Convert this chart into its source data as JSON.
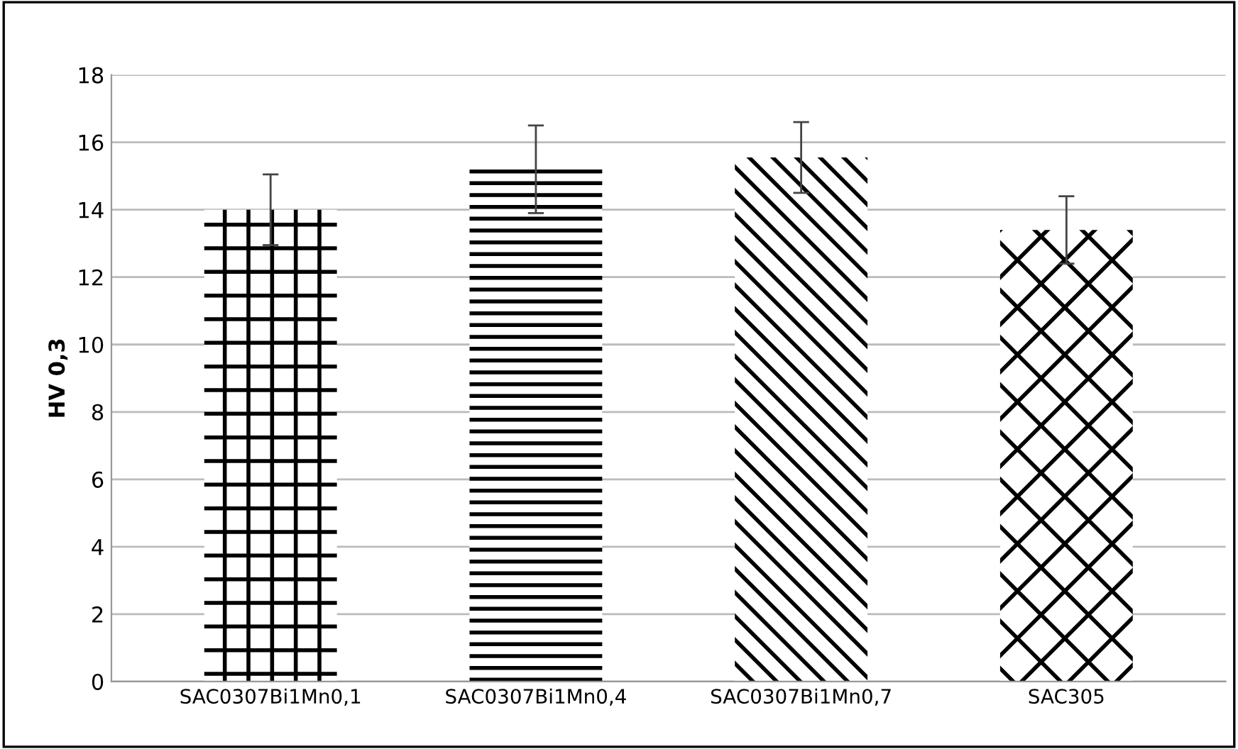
{
  "chart_data": {
    "type": "bar",
    "ylabel": "HV 0,3",
    "categories": [
      "SAC0307Bi1Mn0,1",
      "SAC0307Bi1Mn0,4",
      "SAC0307Bi1Mn0,7",
      "SAC305"
    ],
    "values": [
      14.0,
      15.2,
      15.55,
      13.4
    ],
    "errors": [
      1.05,
      1.3,
      1.05,
      1.0
    ],
    "color": "#000000",
    "ylim": [
      0,
      18
    ],
    "yticks": [
      0,
      2,
      4,
      6,
      8,
      10,
      12,
      14,
      16,
      18
    ],
    "grid": "y",
    "legend": false
  }
}
